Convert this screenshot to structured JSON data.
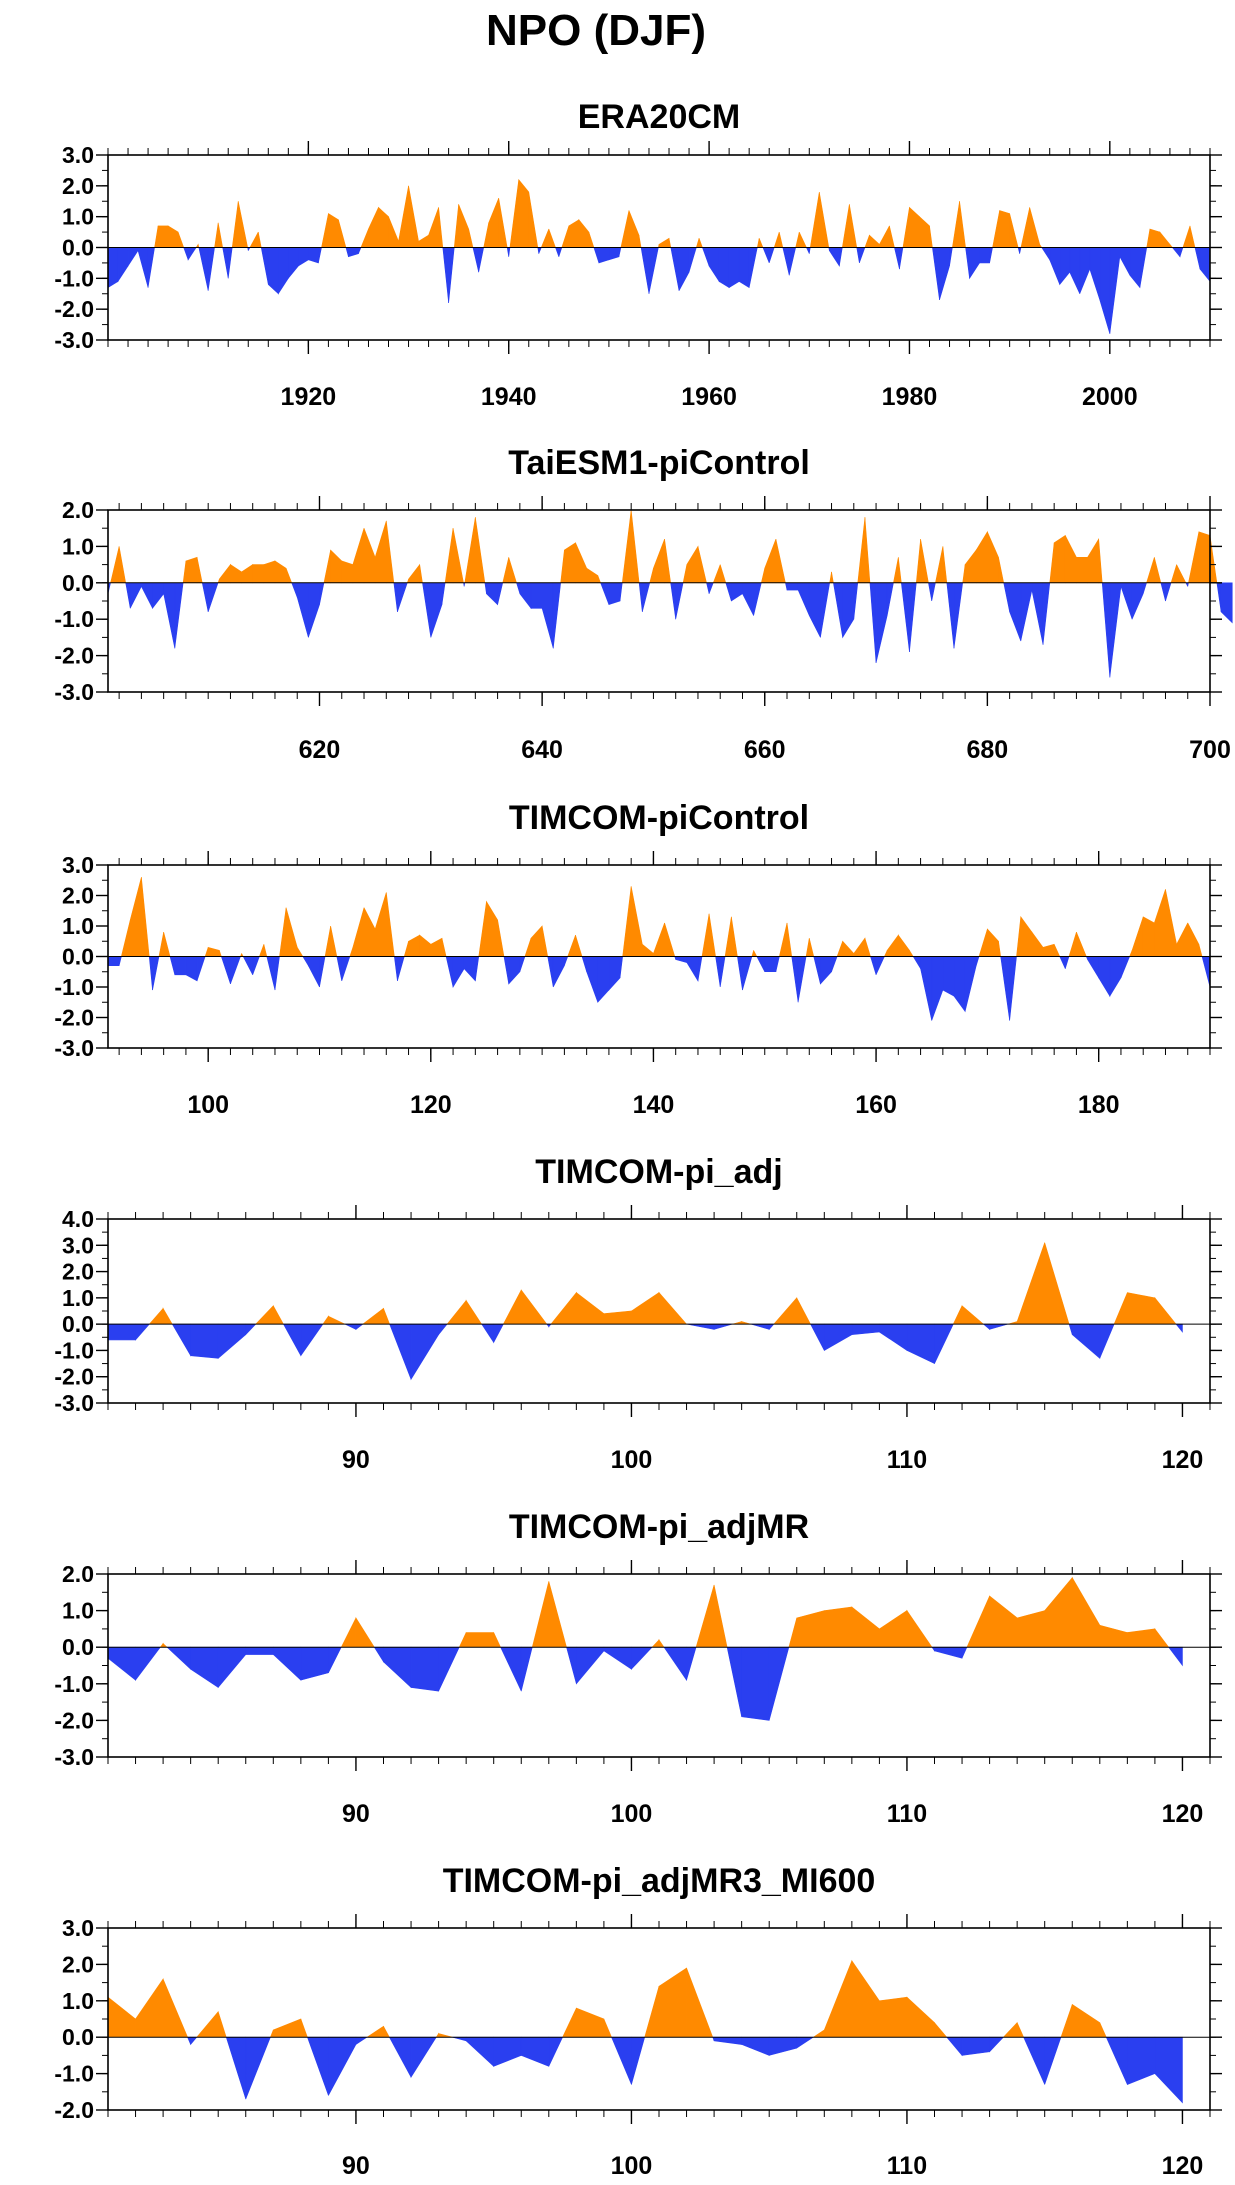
{
  "figure": {
    "title": "NPO (DJF)",
    "colors": {
      "positive": "#ff8a00",
      "negative": "#2a3ff0",
      "axis": "#000000"
    }
  },
  "chart_data": [
    {
      "type": "area",
      "title": "ERA20CM",
      "xlim": [
        1900,
        2010
      ],
      "ylim": [
        -3.0,
        3.0
      ],
      "yticks": [
        -3.0,
        -2.0,
        -1.0,
        0.0,
        1.0,
        2.0,
        3.0
      ],
      "ytick_labels": [
        "-3.0",
        "-2.0",
        "-1.0",
        "0.0",
        "1.0",
        "2.0",
        "3.0"
      ],
      "xticks": [
        1920,
        1940,
        1960,
        1980,
        2000
      ],
      "xtick_labels": [
        "1920",
        "1940",
        "1960",
        "1980",
        "2000"
      ],
      "xminor_step": 2,
      "yminor_step": 0.5,
      "x_start": 1900,
      "x_step": 1,
      "values": [
        -1.3,
        -1.1,
        -0.6,
        -0.1,
        -1.3,
        0.7,
        0.7,
        0.5,
        -0.4,
        0.1,
        -1.4,
        0.8,
        -1.0,
        1.5,
        -0.1,
        0.5,
        -1.2,
        -1.5,
        -1.0,
        -0.6,
        -0.4,
        -0.5,
        1.1,
        0.9,
        -0.3,
        -0.2,
        0.6,
        1.3,
        1.0,
        0.2,
        2.0,
        0.2,
        0.4,
        1.3,
        -1.8,
        1.4,
        0.6,
        -0.8,
        0.8,
        1.6,
        -0.3,
        2.2,
        1.8,
        -0.2,
        0.6,
        -0.3,
        0.7,
        0.9,
        0.5,
        -0.5,
        -0.4,
        -0.3,
        1.2,
        0.4,
        -1.5,
        0.1,
        0.3,
        -1.4,
        -0.8,
        0.3,
        -0.6,
        -1.1,
        -1.3,
        -1.1,
        -1.3,
        0.3,
        -0.5,
        0.5,
        -0.9,
        0.5,
        -0.2,
        1.8,
        -0.1,
        -0.6,
        1.4,
        -0.5,
        0.4,
        0.1,
        0.7,
        -0.7,
        1.3,
        1.0,
        0.7,
        -1.7,
        -0.6,
        1.5,
        -1.0,
        -0.5,
        -0.5,
        1.2,
        1.1,
        -0.2,
        1.3,
        0.1,
        -0.4,
        -1.2,
        -0.8,
        -1.5,
        -0.7,
        -1.7,
        -2.8,
        -0.3,
        -0.9,
        -1.3,
        0.6,
        0.5,
        0.1,
        -0.3,
        0.7,
        -0.7,
        -1.1
      ]
    },
    {
      "type": "area",
      "title": "TaiESM1-piControl",
      "xlim": [
        601,
        700
      ],
      "ylim": [
        -3.0,
        2.0
      ],
      "yticks": [
        -3.0,
        -2.0,
        -1.0,
        0.0,
        1.0,
        2.0
      ],
      "ytick_labels": [
        "-3.0",
        "-2.0",
        "-1.0",
        "0.0",
        "1.0",
        "2.0"
      ],
      "xticks": [
        620,
        640,
        660,
        680,
        700
      ],
      "xtick_labels": [
        "620",
        "640",
        "660",
        "680",
        "700"
      ],
      "xminor_step": 2,
      "yminor_step": 0.5,
      "x_start": 601,
      "x_step": 1,
      "values": [
        -0.3,
        1.0,
        -0.7,
        -0.1,
        -0.7,
        -0.3,
        -1.8,
        0.6,
        0.7,
        -0.8,
        0.1,
        0.5,
        0.3,
        0.5,
        0.5,
        0.6,
        0.4,
        -0.4,
        -1.5,
        -0.6,
        0.9,
        0.6,
        0.5,
        1.5,
        0.7,
        1.7,
        -0.8,
        0.1,
        0.5,
        -1.5,
        -0.6,
        1.5,
        -0.1,
        1.8,
        -0.3,
        -0.6,
        0.7,
        -0.3,
        -0.7,
        -0.7,
        -1.8,
        0.9,
        1.1,
        0.4,
        0.2,
        -0.6,
        -0.5,
        2.0,
        -0.8,
        0.4,
        1.2,
        -1.0,
        0.5,
        1.0,
        -0.3,
        0.5,
        -0.5,
        -0.3,
        -0.9,
        0.4,
        1.2,
        -0.2,
        -0.2,
        -0.9,
        -1.5,
        0.3,
        -1.5,
        -1.0,
        1.8,
        -2.2,
        -0.9,
        0.7,
        -1.9,
        1.2,
        -0.5,
        1.0,
        -1.8,
        0.5,
        0.9,
        1.4,
        0.7,
        -0.8,
        -1.6,
        -0.2,
        -1.7,
        1.1,
        1.3,
        0.7,
        0.7,
        1.2,
        -2.6,
        -0.1,
        -1.0,
        -0.3,
        0.7,
        -0.5,
        0.5,
        -0.1,
        1.4,
        1.3,
        -0.8,
        -1.1
      ]
    },
    {
      "type": "area",
      "title": "TIMCOM-piControl",
      "xlim": [
        91,
        190
      ],
      "ylim": [
        -3.0,
        3.0
      ],
      "yticks": [
        -3.0,
        -2.0,
        -1.0,
        0.0,
        1.0,
        2.0,
        3.0
      ],
      "ytick_labels": [
        "-3.0",
        "-2.0",
        "-1.0",
        "0.0",
        "1.0",
        "2.0",
        "3.0"
      ],
      "xticks": [
        100,
        120,
        140,
        160,
        180
      ],
      "xtick_labels": [
        "100",
        "120",
        "140",
        "160",
        "180"
      ],
      "xminor_step": 2,
      "yminor_step": 0.5,
      "x_start": 91,
      "x_step": 1,
      "values": [
        -0.3,
        -0.3,
        1.2,
        2.6,
        -1.1,
        0.8,
        -0.6,
        -0.6,
        -0.8,
        0.3,
        0.2,
        -0.9,
        0.1,
        -0.6,
        0.4,
        -1.1,
        1.6,
        0.3,
        -0.3,
        -1.0,
        1.0,
        -0.8,
        0.3,
        1.6,
        0.9,
        2.1,
        -0.8,
        0.5,
        0.7,
        0.4,
        0.6,
        -1.0,
        -0.4,
        -0.8,
        1.8,
        1.2,
        -0.9,
        -0.5,
        0.6,
        1.0,
        -1.0,
        -0.3,
        0.7,
        -0.5,
        -1.5,
        -1.1,
        -0.7,
        2.3,
        0.4,
        0.1,
        1.1,
        -0.1,
        -0.2,
        -0.8,
        1.4,
        -1.0,
        1.3,
        -1.1,
        0.2,
        -0.5,
        -0.5,
        1.1,
        -1.5,
        0.6,
        -0.9,
        -0.5,
        0.5,
        0.1,
        0.6,
        -0.6,
        0.2,
        0.7,
        0.2,
        -0.4,
        -2.1,
        -1.1,
        -1.3,
        -1.8,
        -0.3,
        0.9,
        0.5,
        -2.1,
        1.3,
        0.8,
        0.3,
        0.4,
        -0.4,
        0.8,
        -0.1,
        -0.7,
        -1.3,
        -0.7,
        0.2,
        1.3,
        1.1,
        2.2,
        0.4,
        1.1,
        0.4,
        -1.0
      ]
    },
    {
      "type": "area",
      "title": "TIMCOM-pi_adj",
      "xlim": [
        81,
        121
      ],
      "ylim": [
        -3.0,
        4.0
      ],
      "yticks": [
        -3.0,
        -2.0,
        -1.0,
        0.0,
        1.0,
        2.0,
        3.0,
        4.0
      ],
      "ytick_labels": [
        "-3.0",
        "-2.0",
        "-1.0",
        "0.0",
        "1.0",
        "2.0",
        "3.0",
        "4.0"
      ],
      "xticks": [
        90,
        100,
        110,
        120
      ],
      "xtick_labels": [
        "90",
        "100",
        "110",
        "120"
      ],
      "xminor_step": 1,
      "yminor_step": 0.5,
      "x_start": 81,
      "x_step": 1,
      "values": [
        -0.6,
        -0.6,
        0.6,
        -1.2,
        -1.3,
        -0.4,
        0.7,
        -1.2,
        0.3,
        -0.2,
        0.6,
        -2.1,
        -0.4,
        0.9,
        -0.7,
        1.3,
        -0.1,
        1.2,
        0.4,
        0.5,
        1.2,
        0.0,
        -0.2,
        0.1,
        -0.2,
        1.0,
        -1.0,
        -0.4,
        -0.3,
        -1.0,
        -1.5,
        0.7,
        -0.2,
        0.1,
        3.1,
        -0.4,
        -1.3,
        1.2,
        1.0,
        -0.3
      ]
    },
    {
      "type": "area",
      "title": "TIMCOM-pi_adjMR",
      "xlim": [
        81,
        121
      ],
      "ylim": [
        -3.0,
        2.0
      ],
      "yticks": [
        -3.0,
        -2.0,
        -1.0,
        0.0,
        1.0,
        2.0
      ],
      "ytick_labels": [
        "-3.0",
        "-2.0",
        "-1.0",
        "0.0",
        "1.0",
        "2.0"
      ],
      "xticks": [
        90,
        100,
        110,
        120
      ],
      "xtick_labels": [
        "90",
        "100",
        "110",
        "120"
      ],
      "xminor_step": 1,
      "yminor_step": 0.5,
      "x_start": 81,
      "x_step": 1,
      "values": [
        -0.3,
        -0.9,
        0.1,
        -0.6,
        -1.1,
        -0.2,
        -0.2,
        -0.9,
        -0.7,
        0.8,
        -0.4,
        -1.1,
        -1.2,
        0.4,
        0.4,
        -1.2,
        1.8,
        -1.0,
        -0.1,
        -0.6,
        0.2,
        -0.9,
        1.7,
        -1.9,
        -2.0,
        0.8,
        1.0,
        1.1,
        0.5,
        1.0,
        -0.1,
        -0.3,
        1.4,
        0.8,
        1.0,
        1.9,
        0.6,
        0.4,
        0.5,
        -0.5
      ]
    },
    {
      "type": "area",
      "title": "TIMCOM-pi_adjMR3_MI600",
      "xlim": [
        81,
        121
      ],
      "ylim": [
        -2.0,
        3.0
      ],
      "yticks": [
        -2.0,
        -1.0,
        0.0,
        1.0,
        2.0,
        3.0
      ],
      "ytick_labels": [
        "-2.0",
        "-1.0",
        "0.0",
        "1.0",
        "2.0",
        "3.0"
      ],
      "xticks": [
        90,
        100,
        110,
        120
      ],
      "xtick_labels": [
        "90",
        "100",
        "110",
        "120"
      ],
      "xminor_step": 1,
      "yminor_step": 0.5,
      "x_start": 81,
      "x_step": 1,
      "values": [
        1.1,
        0.5,
        1.6,
        -0.2,
        0.7,
        -1.7,
        0.2,
        0.5,
        -1.6,
        -0.2,
        0.3,
        -1.1,
        0.1,
        -0.1,
        -0.8,
        -0.5,
        -0.8,
        0.8,
        0.5,
        -1.3,
        1.4,
        1.9,
        -0.1,
        -0.2,
        -0.5,
        -0.3,
        0.2,
        2.1,
        1.0,
        1.1,
        0.4,
        -0.5,
        -0.4,
        0.4,
        -1.3,
        0.9,
        0.4,
        -1.3,
        -1.0,
        -1.8
      ]
    }
  ]
}
